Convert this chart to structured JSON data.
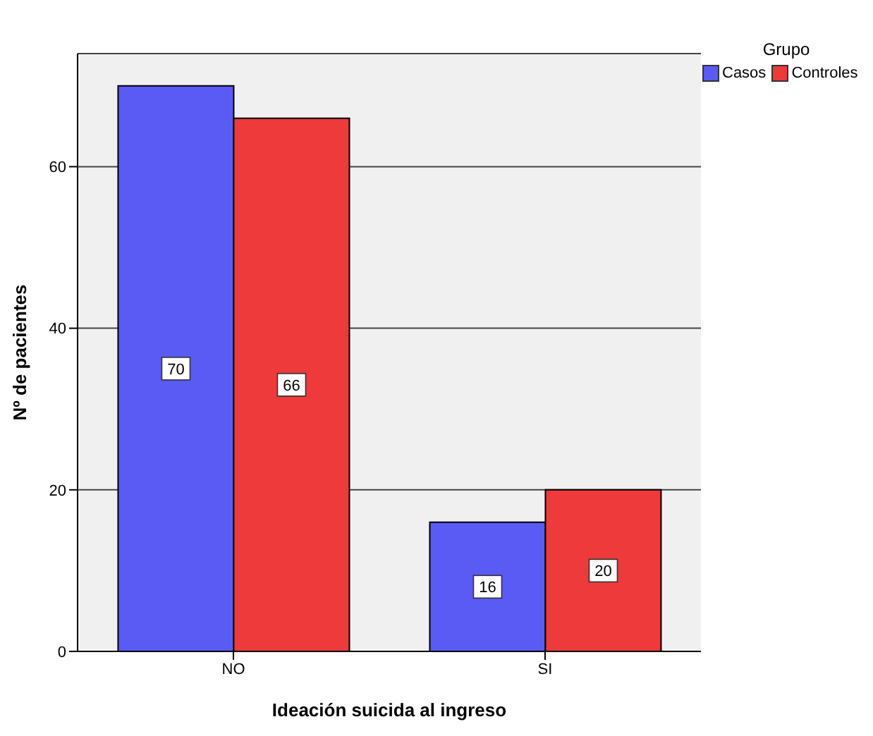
{
  "chart_data": {
    "type": "bar",
    "xlabel": "Ideación suicida al ingreso",
    "ylabel": "Nº de pacientes",
    "legend_title": "Grupo",
    "categories": [
      "NO",
      "SI"
    ],
    "series": [
      {
        "name": "Casos",
        "color": "#5a5af5",
        "values": [
          70,
          16
        ]
      },
      {
        "name": "Controles",
        "color": "#ee3a3a",
        "values": [
          66,
          20
        ]
      }
    ],
    "ylim": [
      0,
      74
    ],
    "yticks": [
      0,
      20,
      40,
      60
    ],
    "grid": "y",
    "legend": "top right",
    "data_labels": true
  }
}
